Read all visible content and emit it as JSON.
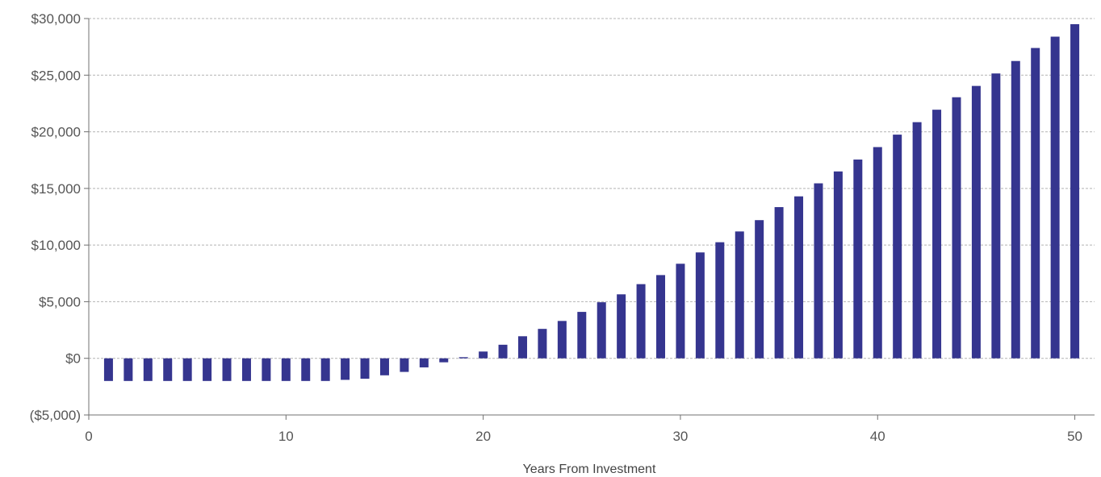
{
  "chart_data": {
    "type": "bar",
    "title": "",
    "xlabel": "Years From Investment",
    "ylabel": "",
    "x": [
      1,
      2,
      3,
      4,
      5,
      6,
      7,
      8,
      9,
      10,
      11,
      12,
      13,
      14,
      15,
      16,
      17,
      18,
      19,
      20,
      21,
      22,
      23,
      24,
      25,
      26,
      27,
      28,
      29,
      30,
      31,
      32,
      33,
      34,
      35,
      36,
      37,
      38,
      39,
      40,
      41,
      42,
      43,
      44,
      45,
      46,
      47,
      48,
      49,
      50
    ],
    "values": [
      -2000,
      -2000,
      -2000,
      -2000,
      -2000,
      -2000,
      -2000,
      -2000,
      -2000,
      -2000,
      -2000,
      -2000,
      -1900,
      -1800,
      -1500,
      -1200,
      -800,
      -350,
      100,
      600,
      1200,
      1950,
      2600,
      3300,
      4100,
      4950,
      5650,
      6550,
      7350,
      8350,
      9350,
      10250,
      11200,
      12200,
      13350,
      14300,
      15450,
      16500,
      17550,
      18650,
      19750,
      20850,
      21950,
      23050,
      24050,
      25150,
      26250,
      27400,
      28400,
      29500
    ],
    "xlim": [
      0,
      51
    ],
    "ylim": [
      -5000,
      30000
    ],
    "x_ticks": [
      {
        "value": 0,
        "label": "0"
      },
      {
        "value": 10,
        "label": "10"
      },
      {
        "value": 20,
        "label": "20"
      },
      {
        "value": 30,
        "label": "30"
      },
      {
        "value": 40,
        "label": "40"
      },
      {
        "value": 50,
        "label": "50"
      }
    ],
    "y_ticks": [
      {
        "value": -5000,
        "label": "($5,000)"
      },
      {
        "value": 0,
        "label": "$0"
      },
      {
        "value": 5000,
        "label": "$5,000"
      },
      {
        "value": 10000,
        "label": "$10,000"
      },
      {
        "value": 15000,
        "label": "$15,000"
      },
      {
        "value": 20000,
        "label": "$20,000"
      },
      {
        "value": 25000,
        "label": "$25,000"
      },
      {
        "value": 30000,
        "label": "$30,000"
      }
    ],
    "grid": true,
    "legend": "none",
    "bar_color": "#35358f"
  }
}
